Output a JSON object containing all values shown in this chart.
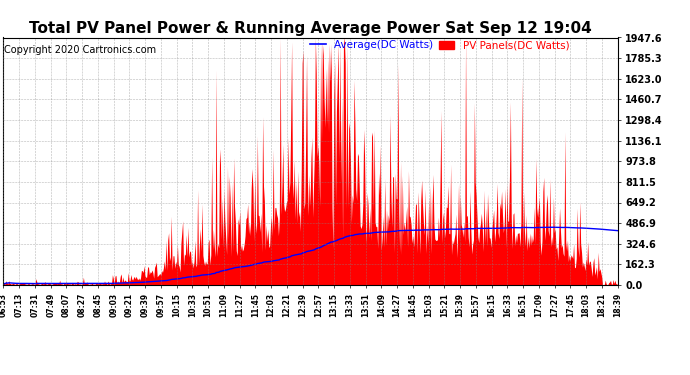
{
  "title": "Total PV Panel Power & Running Average Power Sat Sep 12 19:04",
  "copyright": "Copyright 2020 Cartronics.com",
  "legend_avg": "Average(DC Watts)",
  "legend_pv": "PV Panels(DC Watts)",
  "ymin": 0.0,
  "ymax": 1947.0,
  "ytick_step": 162.3,
  "background_color": "#ffffff",
  "grid_color": "#888888",
  "fill_color": "#ff0000",
  "avg_line_color": "#0000ff",
  "title_fontsize": 11,
  "copyright_fontsize": 7,
  "xtick_labels": [
    "06:53",
    "07:13",
    "07:31",
    "07:49",
    "08:07",
    "08:27",
    "08:45",
    "09:03",
    "09:21",
    "09:39",
    "09:57",
    "10:15",
    "10:33",
    "10:51",
    "11:09",
    "11:27",
    "11:45",
    "12:03",
    "12:21",
    "12:39",
    "12:57",
    "13:15",
    "13:33",
    "13:51",
    "14:09",
    "14:27",
    "14:45",
    "15:03",
    "15:21",
    "15:39",
    "15:57",
    "16:15",
    "16:33",
    "16:51",
    "17:09",
    "17:27",
    "17:45",
    "18:03",
    "18:21",
    "18:39"
  ]
}
